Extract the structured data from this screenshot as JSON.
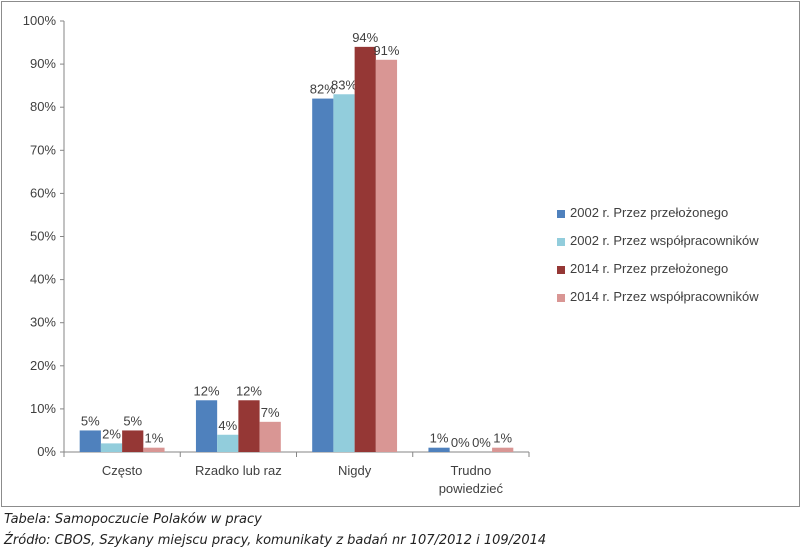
{
  "captions": {
    "line1": "Tabela: Samopoczucie Polaków w pracy",
    "line2": "Źródło: CBOS, Szykany miejscu pracy, komunikaty z badań nr 107/2012 i 109/2014"
  },
  "chart_data": {
    "type": "bar",
    "categories": [
      [
        "Często"
      ],
      [
        "Rzadko lub raz"
      ],
      [
        "Nigdy"
      ],
      [
        "Trudno",
        "powiedzieć"
      ]
    ],
    "series": [
      {
        "name": "2002 r. Przez przełożonego",
        "color": "#4f81bd",
        "values": [
          5,
          12,
          82,
          1
        ]
      },
      {
        "name": "2002 r. Przez współpracowników",
        "color": "#92cddc",
        "values": [
          2,
          4,
          83,
          0
        ]
      },
      {
        "name": "2014 r. Przez przełożonego",
        "color": "#953735",
        "values": [
          5,
          12,
          94,
          0
        ]
      },
      {
        "name": "2014 r. Przez współpracowników",
        "color": "#d99694",
        "values": [
          1,
          7,
          91,
          1
        ]
      }
    ],
    "ylim": [
      0,
      100
    ],
    "yticks": [
      0,
      10,
      20,
      30,
      40,
      50,
      60,
      70,
      80,
      90,
      100
    ],
    "ytick_labels": [
      "0%",
      "10%",
      "20%",
      "30%",
      "40%",
      "50%",
      "60%",
      "70%",
      "80%",
      "90%",
      "100%"
    ],
    "data_labels": [
      "5%",
      "2%",
      "5%",
      "1%",
      "12%",
      "4%",
      "12%",
      "7%",
      "82%",
      "83%",
      "94%",
      "91%",
      "1%",
      "0%",
      "0%",
      "1%"
    ],
    "grid": false,
    "legend_position": "right"
  }
}
